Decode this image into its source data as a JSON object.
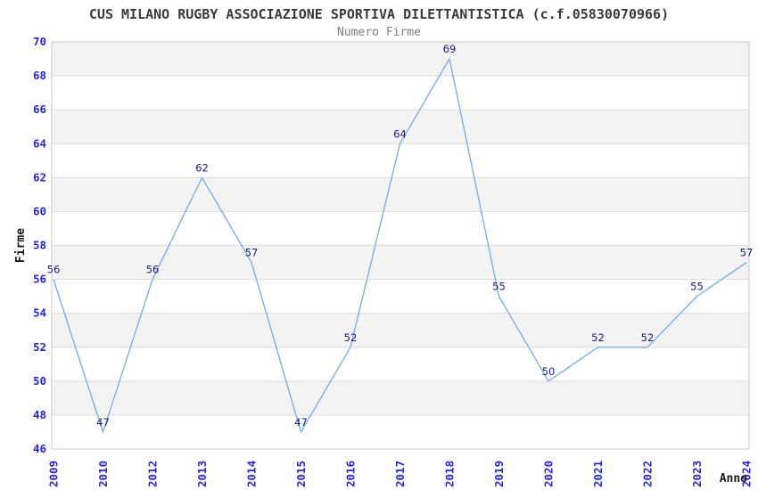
{
  "chart_data": {
    "type": "line",
    "title": "CUS MILANO RUGBY ASSOCIAZIONE SPORTIVA DILETTANTISTICA (c.f.05830070966)",
    "subtitle": "Numero Firme",
    "xlabel": "Anno",
    "ylabel": "Firme",
    "categories": [
      "2009",
      "2010",
      "2012",
      "2013",
      "2014",
      "2015",
      "2016",
      "2017",
      "2018",
      "2019",
      "2020",
      "2021",
      "2022",
      "2023",
      "2024"
    ],
    "values": [
      56,
      47,
      56,
      62,
      57,
      47,
      52,
      64,
      69,
      55,
      50,
      52,
      52,
      55,
      57
    ],
    "data_labels_visible": true,
    "ylim": [
      46,
      70
    ],
    "ytick_step": 2,
    "yticks": [
      46,
      48,
      50,
      52,
      54,
      56,
      58,
      60,
      62,
      64,
      66,
      68,
      70
    ],
    "grid": "alternating-horizontal-bands",
    "legend": "none",
    "markers": "none",
    "colors": {
      "line": "#7dafe6",
      "tick_label": "#2828cc",
      "data_label": "#1a1a80",
      "band_gray": "#f3f3f3",
      "band_white": "#ffffff",
      "band_line": "#dcdcdc",
      "plot_border": "#c8c8c8",
      "title": "#3a3a3a",
      "subtitle": "#808080",
      "axis_label": "#1a1a1a"
    }
  }
}
